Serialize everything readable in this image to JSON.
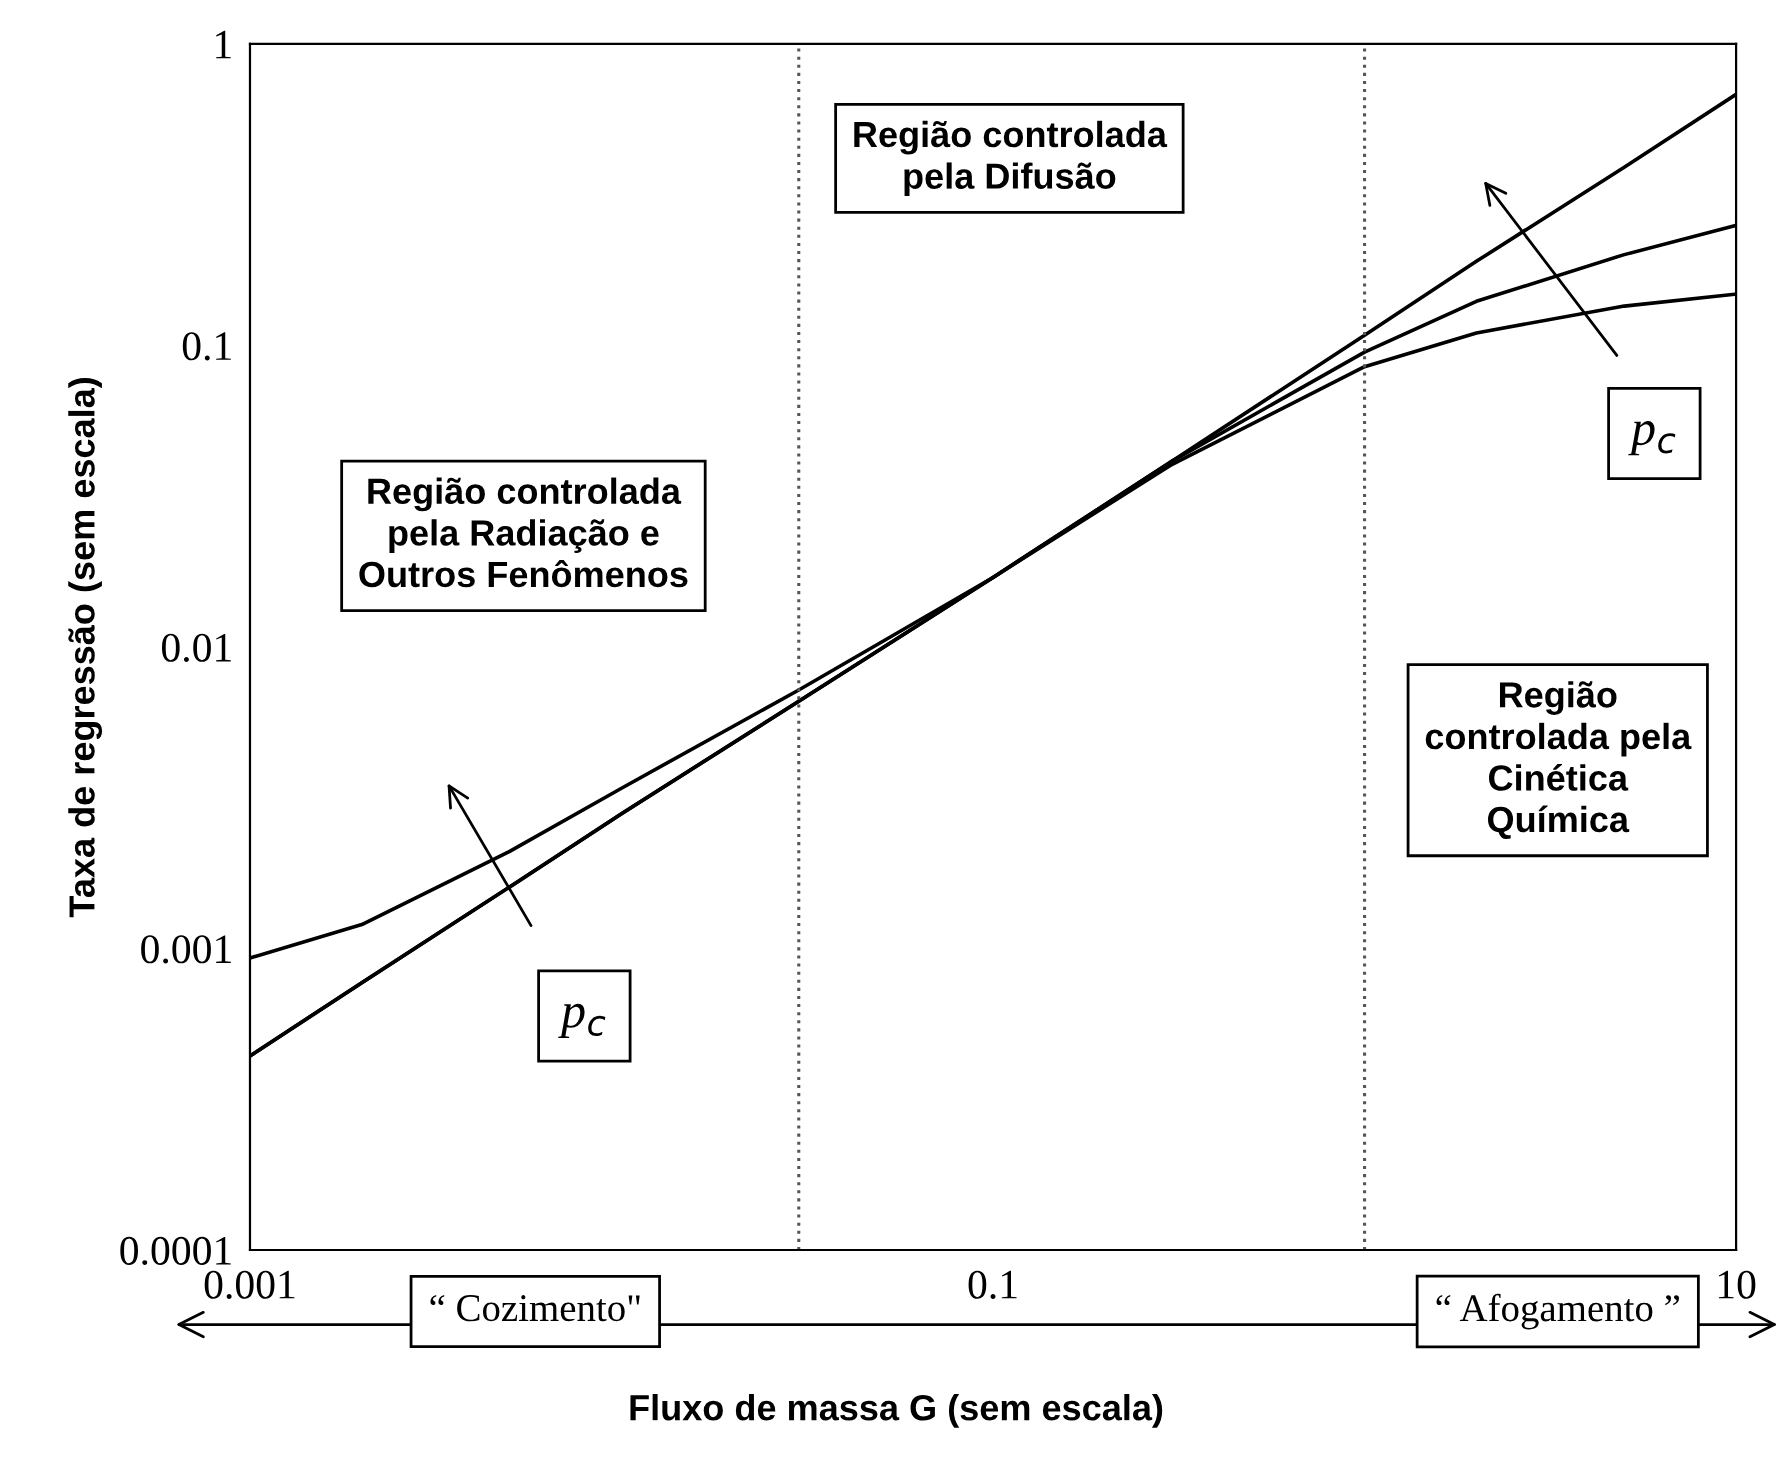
{
  "chart_data": {
    "type": "line",
    "log": "xy",
    "xlabel": "Fluxo de massa G (sem escala)",
    "ylabel": "Taxa de regressão (sem escala)",
    "xlim": [
      0.001,
      10
    ],
    "ylim": [
      0.0001,
      1
    ],
    "xticks": [
      0.001,
      0.1,
      10
    ],
    "yticks": [
      0.0001,
      0.001,
      0.01,
      0.1,
      1
    ],
    "grid": false,
    "legend": false,
    "x": [
      0.001,
      0.002,
      0.005,
      0.01,
      0.03,
      0.1,
      0.3,
      1,
      2,
      5,
      10
    ],
    "series": [
      {
        "color": "#000000",
        "values": [
          0.00044,
          0.00077,
          0.0016,
          0.0028,
          0.0066,
          0.017,
          0.041,
          0.108,
          0.19,
          0.39,
          0.68
        ]
      },
      {
        "color": "#000000",
        "values": [
          0.00044,
          0.00077,
          0.0016,
          0.0028,
          0.0066,
          0.017,
          0.041,
          0.095,
          0.14,
          0.2,
          0.25
        ]
      },
      {
        "color": "#000000",
        "values": [
          0.00093,
          0.0012,
          0.0021,
          0.0034,
          0.0072,
          0.017,
          0.04,
          0.085,
          0.11,
          0.135,
          0.148
        ]
      }
    ],
    "ref_lines": [
      {
        "axis": "x",
        "value": 0.03,
        "line_style": "dotted",
        "color": "#555555"
      },
      {
        "axis": "x",
        "value": 1,
        "line_style": "dotted",
        "color": "#555555"
      }
    ],
    "annotations": [
      "Região controlada\npela Difusão",
      "Região controlada\npela Radiação e\nOutros Fenômenos",
      "Região\ncontrolada pela\nCinética\nQuímica",
      "p$_{c}$",
      "p$_{c}$",
      "“ Cozimento\"",
      "“ Afogamento ”"
    ]
  }
}
